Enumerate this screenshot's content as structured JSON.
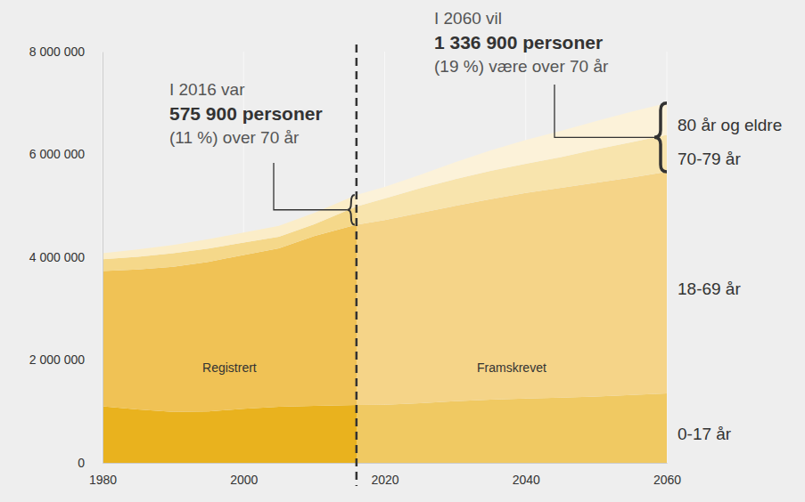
{
  "chart_data": {
    "type": "area",
    "stacked": true,
    "grid": true,
    "x": [
      1980,
      1985,
      1990,
      1995,
      2000,
      2005,
      2010,
      2016,
      2020,
      2025,
      2030,
      2035,
      2040,
      2045,
      2050,
      2055,
      2060
    ],
    "xlim": [
      1980,
      2060
    ],
    "xticks": [
      1980,
      2000,
      2020,
      2040,
      2060
    ],
    "ylim": [
      0,
      8000000
    ],
    "yticks": [
      0,
      {
        "value": 2000000,
        "label": "2 000 000"
      },
      {
        "value": 4000000,
        "label": "4 000 000"
      },
      {
        "value": 6000000,
        "label": "6 000 000"
      },
      {
        "value": 8000000,
        "label": "8 000 000"
      }
    ],
    "projection_start": 2016,
    "region_labels": [
      "Registrert",
      "Framskrevet"
    ],
    "series": [
      {
        "name": "0-17 år",
        "color": "#e9b21e",
        "values": [
          1100000,
          1040000,
          990000,
          1000000,
          1050000,
          1090000,
          1110000,
          1125000,
          1130000,
          1160000,
          1200000,
          1230000,
          1250000,
          1270000,
          1290000,
          1320000,
          1350000
        ]
      },
      {
        "name": "18-69 år",
        "color": "#f0c255",
        "values": [
          2630000,
          2720000,
          2825000,
          2910000,
          2995000,
          3085000,
          3300000,
          3509000,
          3595000,
          3700000,
          3800000,
          3900000,
          4000000,
          4080000,
          4160000,
          4230000,
          4313000
        ]
      },
      {
        "name": "70-79 år",
        "color": "#f5d88a",
        "values": [
          230000,
          250000,
          265000,
          260000,
          240000,
          225000,
          230000,
          355000,
          420000,
          480000,
          520000,
          550000,
          570000,
          600000,
          650000,
          690000,
          717000
        ]
      },
      {
        "name": "80 år og eldre",
        "color": "#fbedc8",
        "values": [
          120000,
          140000,
          160000,
          180000,
          195000,
          210000,
          220000,
          221000,
          225000,
          260000,
          330000,
          400000,
          460000,
          510000,
          550000,
          590000,
          620000
        ]
      }
    ],
    "annotations": [
      {
        "x": 2016,
        "lines": [
          "I 2016 var",
          "575 900 personer",
          "(11 %) over 70 år"
        ]
      },
      {
        "x": 2060,
        "lines": [
          "I 2060 vil",
          "1 336 900 personer",
          "(19 %) være over 70 år"
        ]
      }
    ]
  }
}
